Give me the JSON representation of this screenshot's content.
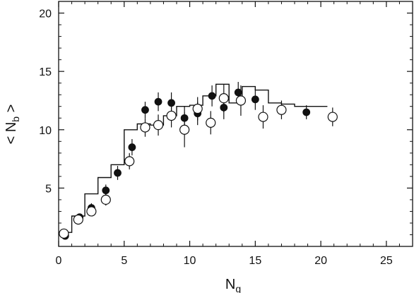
{
  "chart_data": {
    "type": "scatter",
    "title": "",
    "xlabel": "N",
    "xlabel_sub": "g",
    "ylabel": "< N",
    "ylabel_sub": "b",
    "ylabel_close": " >",
    "xlim": [
      0,
      27
    ],
    "ylim": [
      0,
      21
    ],
    "x_ticks": [
      0,
      5,
      10,
      15,
      20,
      25
    ],
    "y_ticks": [
      5,
      10,
      15,
      20
    ],
    "grid": false,
    "legend": "none",
    "series": [
      {
        "marker": "filled-circle",
        "color": "#111111",
        "points": [
          {
            "x": 0.5,
            "y": 0.9,
            "err": 0.2
          },
          {
            "x": 1.6,
            "y": 2.5,
            "err": 0.3
          },
          {
            "x": 2.5,
            "y": 3.3,
            "err": 0.4
          },
          {
            "x": 3.6,
            "y": 4.8,
            "err": 0.5
          },
          {
            "x": 4.5,
            "y": 6.3,
            "err": 0.6
          },
          {
            "x": 5.6,
            "y": 8.5,
            "err": 0.7
          },
          {
            "x": 6.6,
            "y": 11.7,
            "err": 0.7
          },
          {
            "x": 7.6,
            "y": 12.4,
            "err": 0.8
          },
          {
            "x": 8.6,
            "y": 12.3,
            "err": 0.9
          },
          {
            "x": 9.6,
            "y": 11.0,
            "err": 1.0
          },
          {
            "x": 10.6,
            "y": 11.4,
            "err": 1.0
          },
          {
            "x": 11.7,
            "y": 12.9,
            "err": 0.9
          },
          {
            "x": 12.6,
            "y": 11.9,
            "err": 1.0
          },
          {
            "x": 13.7,
            "y": 13.2,
            "err": 0.9
          },
          {
            "x": 15.0,
            "y": 12.6,
            "err": 0.9
          },
          {
            "x": 18.9,
            "y": 11.5,
            "err": 0.6
          }
        ]
      },
      {
        "marker": "open-circle",
        "color": "#111111",
        "points": [
          {
            "x": 0.4,
            "y": 1.1,
            "err": 0.2
          },
          {
            "x": 1.5,
            "y": 2.3,
            "err": 0.3
          },
          {
            "x": 2.5,
            "y": 3.0,
            "err": 0.4
          },
          {
            "x": 3.6,
            "y": 4.0,
            "err": 0.5
          },
          {
            "x": 5.4,
            "y": 7.3,
            "err": 0.7
          },
          {
            "x": 6.6,
            "y": 10.2,
            "err": 0.8
          },
          {
            "x": 7.6,
            "y": 10.4,
            "err": 0.9
          },
          {
            "x": 8.6,
            "y": 11.2,
            "err": 1.0
          },
          {
            "x": 9.6,
            "y": 10.0,
            "err": 1.5
          },
          {
            "x": 10.6,
            "y": 11.8,
            "err": 1.0
          },
          {
            "x": 11.6,
            "y": 10.6,
            "err": 1.0
          },
          {
            "x": 12.6,
            "y": 12.7,
            "err": 1.2
          },
          {
            "x": 13.9,
            "y": 12.5,
            "err": 1.3
          },
          {
            "x": 15.6,
            "y": 11.1,
            "err": 1.0
          },
          {
            "x": 17.0,
            "y": 11.7,
            "err": 0.8
          },
          {
            "x": 20.9,
            "y": 11.1,
            "err": 0.8
          }
        ]
      }
    ],
    "step_line": {
      "style": "histogram",
      "color": "#111111",
      "steps": [
        {
          "x0": 0,
          "x1": 1,
          "y": 1.2
        },
        {
          "x0": 1,
          "x1": 2,
          "y": 2.6
        },
        {
          "x0": 2,
          "x1": 3,
          "y": 4.5
        },
        {
          "x0": 3,
          "x1": 4,
          "y": 5.9
        },
        {
          "x0": 4,
          "x1": 5,
          "y": 7.0
        },
        {
          "x0": 5,
          "x1": 6,
          "y": 10.0
        },
        {
          "x0": 6,
          "x1": 7,
          "y": 10.5
        },
        {
          "x0": 7,
          "x1": 8,
          "y": 10.4
        },
        {
          "x0": 8,
          "x1": 9,
          "y": 11.2
        },
        {
          "x0": 9,
          "x1": 10,
          "y": 12.0
        },
        {
          "x0": 10,
          "x1": 11,
          "y": 12.1
        },
        {
          "x0": 11,
          "x1": 12,
          "y": 12.9
        },
        {
          "x0": 12,
          "x1": 13,
          "y": 13.9
        },
        {
          "x0": 13,
          "x1": 14,
          "y": 12.3
        },
        {
          "x0": 14,
          "x1": 15,
          "y": 13.7
        },
        {
          "x0": 15,
          "x1": 16,
          "y": 13.4
        },
        {
          "x0": 16,
          "x1": 17,
          "y": 12.3
        },
        {
          "x0": 17,
          "x1": 18,
          "y": 12.2
        },
        {
          "x0": 18,
          "x1": 20.5,
          "y": 12.0
        }
      ]
    }
  }
}
